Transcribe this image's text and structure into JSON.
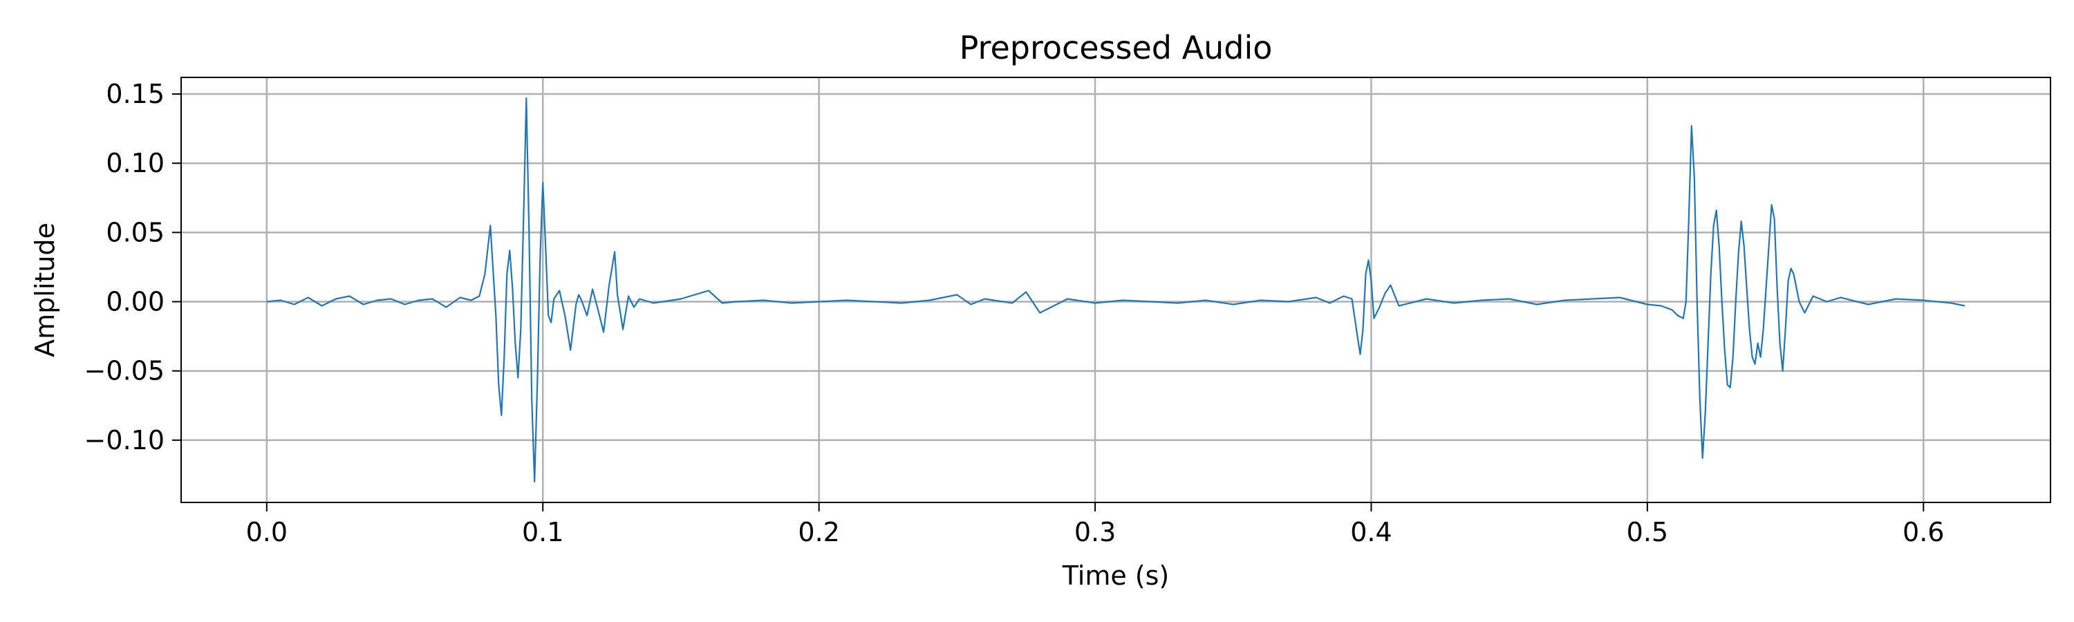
{
  "chart_data": {
    "type": "line",
    "title": "Preprocessed Audio",
    "xlabel": "Time (s)",
    "ylabel": "Amplitude",
    "xlim": [
      -0.031,
      0.646
    ],
    "ylim": [
      -0.145,
      0.162
    ],
    "xticks": [
      0.0,
      0.1,
      0.2,
      0.3,
      0.4,
      0.5,
      0.6
    ],
    "xtick_labels": [
      "0.0",
      "0.1",
      "0.2",
      "0.3",
      "0.4",
      "0.5",
      "0.6"
    ],
    "yticks": [
      -0.1,
      -0.05,
      0.0,
      0.05,
      0.1,
      0.15
    ],
    "ytick_labels": [
      "−0.10",
      "−0.05",
      "0.00",
      "0.05",
      "0.10",
      "0.15"
    ],
    "grid": true,
    "legend": "none",
    "line_color": "#1f77b4",
    "grid_color": "#b0b0b0",
    "series": [
      {
        "x": [
          0.0,
          0.005,
          0.01,
          0.015,
          0.02,
          0.025,
          0.03,
          0.035,
          0.04,
          0.045,
          0.05,
          0.055,
          0.06,
          0.065,
          0.07,
          0.074,
          0.077,
          0.079,
          0.081,
          0.083,
          0.084,
          0.085,
          0.086,
          0.087,
          0.088,
          0.089,
          0.09,
          0.091,
          0.092,
          0.093,
          0.094,
          0.095,
          0.096,
          0.097,
          0.098,
          0.099,
          0.1,
          0.101,
          0.102,
          0.103,
          0.104,
          0.106,
          0.108,
          0.11,
          0.112,
          0.113,
          0.114,
          0.116,
          0.118,
          0.12,
          0.122,
          0.124,
          0.126,
          0.127,
          0.129,
          0.131,
          0.133,
          0.135,
          0.14,
          0.15,
          0.16,
          0.165,
          0.17,
          0.18,
          0.19,
          0.2,
          0.21,
          0.22,
          0.23,
          0.24,
          0.25,
          0.255,
          0.26,
          0.27,
          0.275,
          0.28,
          0.29,
          0.3,
          0.31,
          0.32,
          0.33,
          0.34,
          0.35,
          0.36,
          0.37,
          0.38,
          0.385,
          0.39,
          0.393,
          0.395,
          0.396,
          0.397,
          0.398,
          0.399,
          0.4,
          0.401,
          0.403,
          0.405,
          0.407,
          0.41,
          0.42,
          0.43,
          0.44,
          0.45,
          0.46,
          0.47,
          0.48,
          0.49,
          0.5,
          0.505,
          0.509,
          0.511,
          0.513,
          0.514,
          0.515,
          0.516,
          0.517,
          0.518,
          0.519,
          0.52,
          0.521,
          0.522,
          0.523,
          0.524,
          0.525,
          0.526,
          0.527,
          0.528,
          0.529,
          0.53,
          0.531,
          0.532,
          0.533,
          0.534,
          0.535,
          0.536,
          0.537,
          0.538,
          0.539,
          0.54,
          0.541,
          0.542,
          0.543,
          0.544,
          0.545,
          0.546,
          0.547,
          0.548,
          0.549,
          0.55,
          0.551,
          0.552,
          0.553,
          0.555,
          0.557,
          0.56,
          0.565,
          0.57,
          0.58,
          0.59,
          0.6,
          0.61,
          0.615
        ],
        "y": [
          0.0,
          0.001,
          -0.002,
          0.003,
          -0.003,
          0.002,
          0.004,
          -0.002,
          0.001,
          0.002,
          -0.002,
          0.001,
          0.002,
          -0.004,
          0.003,
          0.001,
          0.004,
          0.02,
          0.055,
          -0.01,
          -0.06,
          -0.082,
          -0.04,
          0.02,
          0.037,
          0.01,
          -0.03,
          -0.055,
          -0.02,
          0.06,
          0.147,
          0.05,
          -0.07,
          -0.13,
          -0.06,
          0.03,
          0.086,
          0.04,
          -0.01,
          -0.015,
          0.002,
          0.008,
          -0.01,
          -0.035,
          -0.002,
          0.005,
          0.001,
          -0.01,
          0.009,
          -0.006,
          -0.022,
          0.012,
          0.036,
          0.005,
          -0.02,
          0.004,
          -0.004,
          0.002,
          -0.001,
          0.002,
          0.008,
          -0.001,
          0.0,
          0.001,
          -0.001,
          0.0,
          0.001,
          0.0,
          -0.001,
          0.001,
          0.005,
          -0.002,
          0.002,
          -0.001,
          0.007,
          -0.008,
          0.002,
          -0.001,
          0.001,
          0.0,
          -0.001,
          0.001,
          -0.002,
          0.001,
          0.0,
          0.003,
          -0.001,
          0.004,
          0.002,
          -0.025,
          -0.038,
          -0.02,
          0.02,
          0.03,
          0.015,
          -0.012,
          -0.004,
          0.006,
          0.012,
          -0.003,
          0.002,
          -0.001,
          0.001,
          0.002,
          -0.002,
          0.001,
          0.002,
          0.003,
          -0.002,
          -0.003,
          -0.006,
          -0.01,
          -0.012,
          0.0,
          0.06,
          0.127,
          0.09,
          0.0,
          -0.07,
          -0.113,
          -0.08,
          -0.03,
          0.02,
          0.055,
          0.066,
          0.04,
          0.0,
          -0.035,
          -0.06,
          -0.062,
          -0.04,
          0.0,
          0.035,
          0.058,
          0.04,
          0.01,
          -0.02,
          -0.04,
          -0.045,
          -0.03,
          -0.04,
          -0.02,
          0.01,
          0.04,
          0.07,
          0.06,
          0.01,
          -0.03,
          -0.05,
          -0.02,
          0.015,
          0.024,
          0.02,
          0.0,
          -0.008,
          0.004,
          0.0,
          0.003,
          -0.002,
          0.002,
          0.001,
          -0.001,
          -0.003
        ]
      }
    ]
  }
}
